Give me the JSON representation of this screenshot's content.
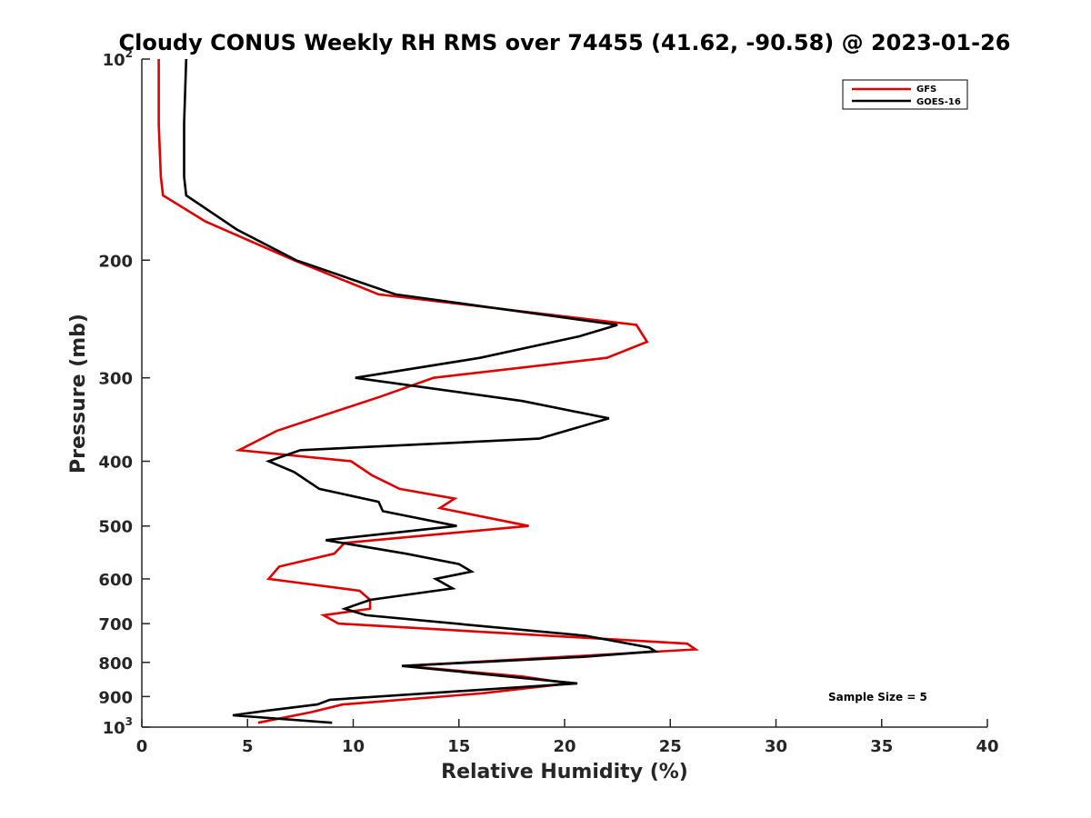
{
  "chart_data": {
    "type": "line",
    "title": "Cloudy CONUS Weekly RH RMS over 74455 (41.62, -90.58) @ 2023-01-26",
    "xlabel": "Relative Humidity (%)",
    "ylabel": "Pressure (mb)",
    "xlim": [
      0,
      40
    ],
    "ylim": [
      100,
      1000
    ],
    "y_scale": "log",
    "y_reversed": true,
    "grid": false,
    "legend_position": "top-right",
    "x_ticks": [
      "0",
      "5",
      "10",
      "15",
      "20",
      "25",
      "30",
      "35",
      "40"
    ],
    "y_ticks": [
      {
        "value": 100,
        "label": "10",
        "sup": "2"
      },
      {
        "value": 200,
        "label": "200",
        "sup": ""
      },
      {
        "value": 300,
        "label": "300",
        "sup": ""
      },
      {
        "value": 400,
        "label": "400",
        "sup": ""
      },
      {
        "value": 500,
        "label": "500",
        "sup": ""
      },
      {
        "value": 600,
        "label": "600",
        "sup": ""
      },
      {
        "value": 700,
        "label": "700",
        "sup": ""
      },
      {
        "value": 800,
        "label": "800",
        "sup": ""
      },
      {
        "value": 900,
        "label": "900",
        "sup": ""
      },
      {
        "value": 1000,
        "label": "10",
        "sup": "3"
      }
    ],
    "series": [
      {
        "name": "GFS",
        "color": "#e00000",
        "points": [
          [
            0.8,
            100
          ],
          [
            0.8,
            125
          ],
          [
            0.9,
            150
          ],
          [
            1.0,
            160
          ],
          [
            3.0,
            175
          ],
          [
            7.2,
            200
          ],
          [
            11.2,
            225
          ],
          [
            23.4,
            250
          ],
          [
            23.9,
            265
          ],
          [
            22.0,
            280
          ],
          [
            13.8,
            300
          ],
          [
            11.3,
            320
          ],
          [
            6.4,
            360
          ],
          [
            4.6,
            385
          ],
          [
            9.9,
            400
          ],
          [
            10.9,
            420
          ],
          [
            12.2,
            440
          ],
          [
            14.8,
            455
          ],
          [
            14.1,
            470
          ],
          [
            18.3,
            500
          ],
          [
            9.6,
            530
          ],
          [
            9.1,
            550
          ],
          [
            6.5,
            575
          ],
          [
            6.0,
            600
          ],
          [
            10.3,
            625
          ],
          [
            10.8,
            645
          ],
          [
            10.8,
            665
          ],
          [
            8.6,
            680
          ],
          [
            9.3,
            700
          ],
          [
            25.8,
            750
          ],
          [
            26.2,
            765
          ],
          [
            12.4,
            810
          ],
          [
            18.0,
            840
          ],
          [
            20.2,
            860
          ],
          [
            16.1,
            890
          ],
          [
            9.5,
            925
          ],
          [
            8.0,
            950
          ],
          [
            5.5,
            985
          ]
        ]
      },
      {
        "name": "GOES-16",
        "color": "#000000",
        "points": [
          [
            2.1,
            100
          ],
          [
            2.0,
            125
          ],
          [
            2.0,
            150
          ],
          [
            2.1,
            160
          ],
          [
            4.5,
            180
          ],
          [
            7.3,
            200
          ],
          [
            12.0,
            225
          ],
          [
            22.5,
            250
          ],
          [
            20.7,
            260
          ],
          [
            16.0,
            280
          ],
          [
            10.1,
            300
          ],
          [
            18.0,
            325
          ],
          [
            22.1,
            345
          ],
          [
            18.8,
            370
          ],
          [
            7.5,
            385
          ],
          [
            6.0,
            400
          ],
          [
            7.2,
            415
          ],
          [
            8.4,
            440
          ],
          [
            11.2,
            460
          ],
          [
            11.4,
            475
          ],
          [
            14.9,
            500
          ],
          [
            8.7,
            525
          ],
          [
            12.5,
            550
          ],
          [
            15.0,
            570
          ],
          [
            15.6,
            585
          ],
          [
            13.9,
            600
          ],
          [
            14.7,
            620
          ],
          [
            10.8,
            645
          ],
          [
            9.6,
            665
          ],
          [
            10.6,
            680
          ],
          [
            21.0,
            730
          ],
          [
            24.0,
            760
          ],
          [
            24.3,
            770
          ],
          [
            20.9,
            785
          ],
          [
            12.3,
            810
          ],
          [
            20.6,
            860
          ],
          [
            8.9,
            910
          ],
          [
            8.3,
            925
          ],
          [
            5.9,
            945
          ],
          [
            4.3,
            960
          ],
          [
            9.0,
            985
          ]
        ]
      }
    ],
    "annotations": [
      "Sample Size = 5"
    ]
  }
}
